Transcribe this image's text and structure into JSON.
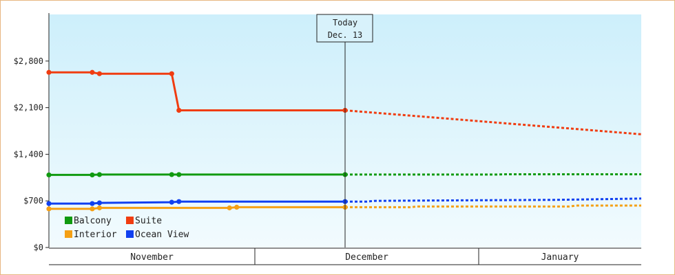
{
  "chart_data": {
    "type": "line",
    "ylim": [
      0,
      3500
    ],
    "y_ticks": [
      0,
      700,
      1400,
      2100,
      2800
    ],
    "y_tick_labels": [
      "$0",
      "$700",
      "$1,400",
      "$2,100",
      "$2,800"
    ],
    "months": [
      {
        "label": "November"
      },
      {
        "label": "December"
      },
      {
        "label": "January"
      }
    ],
    "today": {
      "line1": "Today",
      "line2": "Dec. 13"
    },
    "series": [
      {
        "name": "Balcony",
        "color": "#109a10",
        "history": [
          [
            0,
            1090
          ],
          [
            6,
            1090
          ],
          [
            7,
            1095
          ],
          [
            17,
            1095
          ],
          [
            18,
            1095
          ],
          [
            41,
            1095
          ]
        ],
        "forecast": [
          [
            41,
            1095
          ],
          [
            62,
            1095
          ],
          [
            63,
            1100
          ],
          [
            82,
            1100
          ]
        ]
      },
      {
        "name": "Suite",
        "color": "#f03c10",
        "history": [
          [
            0,
            2630
          ],
          [
            6,
            2630
          ],
          [
            7,
            2610
          ],
          [
            17,
            2610
          ],
          [
            18,
            2060
          ],
          [
            41,
            2060
          ]
        ],
        "forecast": [
          [
            41,
            2060
          ],
          [
            82,
            1700
          ]
        ]
      },
      {
        "name": "Interior",
        "color": "#f5a014",
        "history": [
          [
            0,
            580
          ],
          [
            6,
            580
          ],
          [
            7,
            595
          ],
          [
            25,
            595
          ],
          [
            26,
            605
          ],
          [
            41,
            605
          ]
        ],
        "forecast": [
          [
            41,
            605
          ],
          [
            50,
            605
          ],
          [
            51,
            615
          ],
          [
            72,
            615
          ],
          [
            73,
            630
          ],
          [
            82,
            630
          ]
        ]
      },
      {
        "name": "Ocean View",
        "color": "#1040f0",
        "history": [
          [
            0,
            660
          ],
          [
            6,
            660
          ],
          [
            7,
            670
          ],
          [
            17,
            680
          ],
          [
            18,
            690
          ],
          [
            41,
            690
          ]
        ],
        "forecast": [
          [
            41,
            690
          ],
          [
            44,
            690
          ],
          [
            45,
            700
          ],
          [
            52,
            705
          ],
          [
            70,
            715
          ],
          [
            76,
            725
          ],
          [
            82,
            735
          ]
        ]
      }
    ],
    "history_markers": [
      {
        "series": "Balcony",
        "points": [
          [
            0,
            1090
          ],
          [
            6,
            1090
          ],
          [
            7,
            1095
          ],
          [
            17,
            1095
          ],
          [
            18,
            1095
          ],
          [
            41,
            1095
          ]
        ]
      },
      {
        "series": "Suite",
        "points": [
          [
            0,
            2630
          ],
          [
            6,
            2630
          ],
          [
            7,
            2610
          ],
          [
            17,
            2610
          ],
          [
            18,
            2060
          ],
          [
            41,
            2060
          ]
        ]
      },
      {
        "series": "Interior",
        "points": [
          [
            0,
            580
          ],
          [
            6,
            580
          ],
          [
            7,
            595
          ],
          [
            25,
            595
          ],
          [
            26,
            605
          ],
          [
            41,
            605
          ]
        ]
      },
      {
        "series": "Ocean View",
        "points": [
          [
            0,
            660
          ],
          [
            6,
            660
          ],
          [
            7,
            670
          ],
          [
            17,
            680
          ],
          [
            18,
            690
          ],
          [
            41,
            690
          ]
        ]
      }
    ],
    "legend": [
      {
        "label": "Balcony",
        "color": "#109a10"
      },
      {
        "label": "Suite",
        "color": "#f03c10"
      },
      {
        "label": "Interior",
        "color": "#f5a014"
      },
      {
        "label": "Ocean View",
        "color": "#1040f0"
      }
    ],
    "grid": false
  }
}
